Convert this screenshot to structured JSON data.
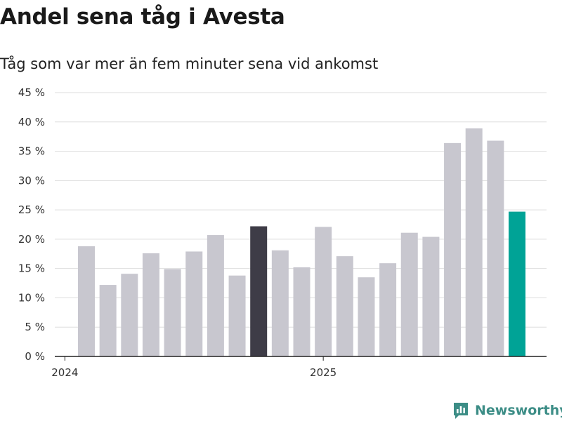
{
  "chart_data": {
    "type": "bar",
    "title": "Andel sena tåg i Avesta",
    "subtitle": "Tåg som var mer än fem minuter sena vid ankomst",
    "xlabel": "",
    "ylabel": "",
    "ylim": [
      0,
      45
    ],
    "yticks": [
      0,
      5,
      10,
      15,
      20,
      25,
      30,
      35,
      40,
      45
    ],
    "ytick_suffix": " %",
    "x_tick_labels": [
      "2024",
      "2025"
    ],
    "x_tick_positions": [
      "2024-01",
      "2025-01"
    ],
    "grid": true,
    "categories": [
      "2024-02",
      "2024-03",
      "2024-04",
      "2024-05",
      "2024-06",
      "2024-07",
      "2024-08",
      "2024-09",
      "2024-10",
      "2024-11",
      "2024-12",
      "2025-01",
      "2025-02",
      "2025-03",
      "2025-04",
      "2025-05",
      "2025-06",
      "2025-07",
      "2025-08",
      "2025-09",
      "2025-10"
    ],
    "values": [
      18.8,
      12.2,
      14.1,
      17.6,
      14.9,
      17.9,
      20.7,
      13.8,
      22.2,
      18.1,
      15.2,
      22.1,
      17.1,
      13.5,
      15.9,
      21.1,
      20.4,
      36.4,
      38.9,
      36.8,
      24.7
    ],
    "colors": {
      "default": "#c8c7cf",
      "highlight_dark": "#3e3c47",
      "highlight_accent": "#00a396"
    },
    "highlight_dark_index": 8,
    "highlight_accent_index": 20
  },
  "brand": {
    "name": "Newsworthy",
    "icon": "bar-chart-logo-icon",
    "color": "#3c8d86"
  }
}
